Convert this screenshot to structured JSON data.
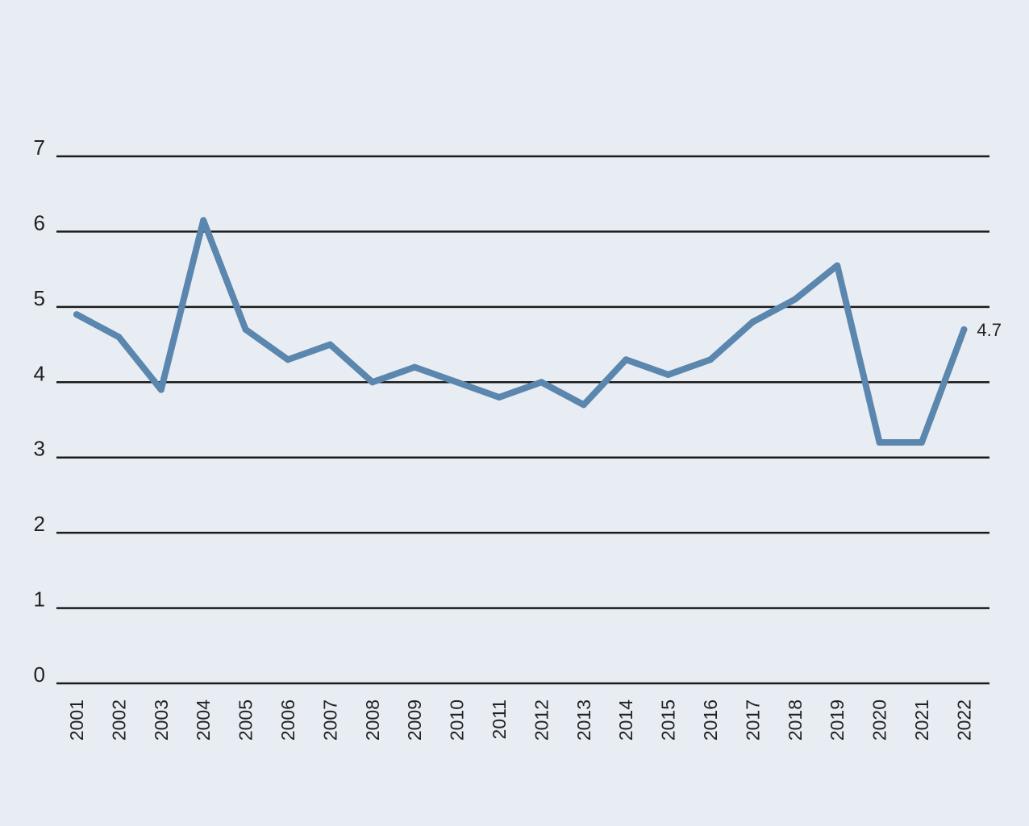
{
  "chart_data": {
    "type": "line",
    "title": "",
    "xlabel": "",
    "ylabel": "",
    "categories": [
      "2001",
      "2002",
      "2003",
      "2004",
      "2005",
      "2006",
      "2007",
      "2008",
      "2009",
      "2010",
      "2011",
      "2012",
      "2013",
      "2014",
      "2015",
      "2016",
      "2017",
      "2018",
      "2019",
      "2020",
      "2021",
      "2022"
    ],
    "series": [
      {
        "values": [
          4.9,
          4.6,
          3.9,
          6.15,
          4.7,
          4.3,
          4.5,
          4.0,
          4.2,
          4.0,
          3.8,
          4.0,
          3.7,
          4.3,
          4.1,
          4.3,
          4.8,
          5.1,
          5.55,
          3.2,
          3.2,
          4.7
        ],
        "color": "#5b86ad"
      }
    ],
    "ylim": [
      0,
      7
    ],
    "yticks": [
      "0",
      "1",
      "2",
      "3",
      "4",
      "5",
      "6",
      "7"
    ],
    "grid": true,
    "legend": "none",
    "annotations": [
      {
        "category": "2022",
        "text": "4.7"
      }
    ],
    "colors": {
      "background": "#e8edf4",
      "gridline": "#1a1a1a",
      "line": "#5b86ad",
      "text": "#222222"
    }
  }
}
